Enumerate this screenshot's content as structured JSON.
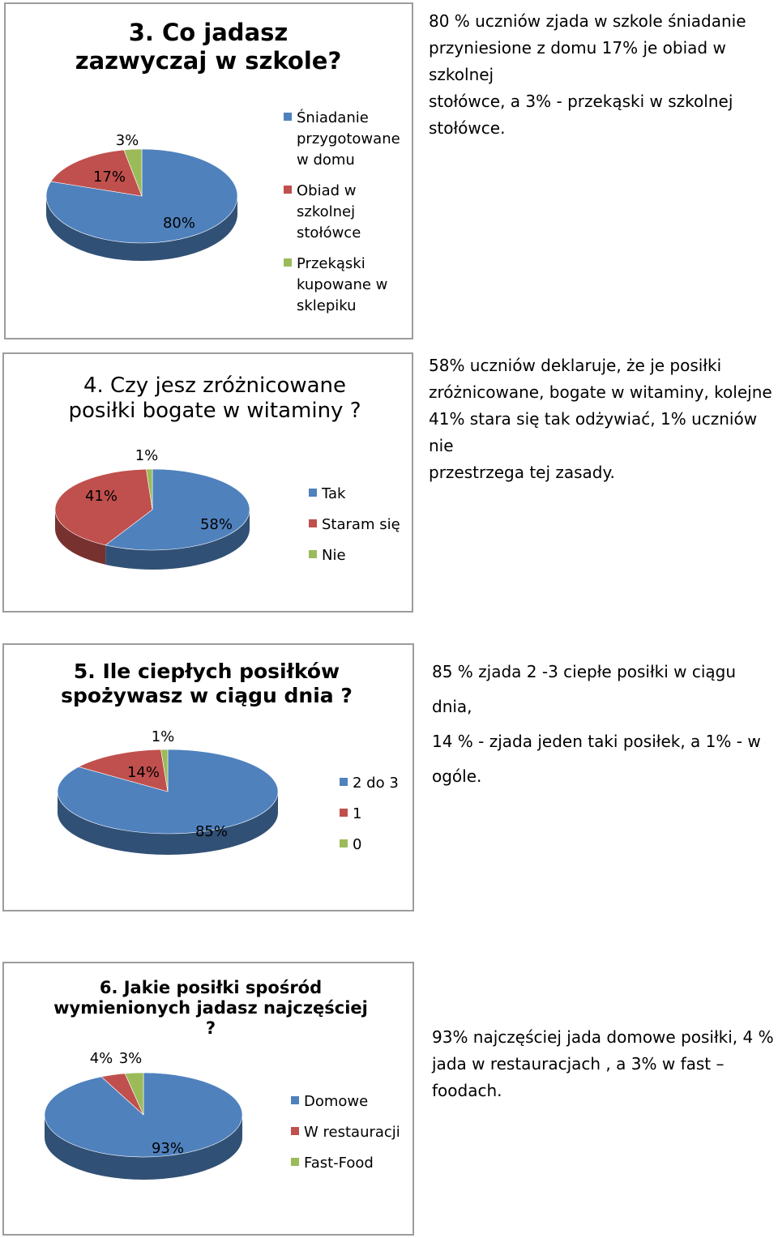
{
  "chart_data": [
    {
      "type": "pie",
      "title": "3. Co jadasz zazwyczaj w szkole?",
      "categories": [
        "Śniadanie przygotowane w domu",
        "Obiad w szkolnej stołówce",
        "Przekąski kupowane w sklepiku"
      ],
      "values": [
        80,
        17,
        3
      ],
      "labels": [
        "80%",
        "17%",
        "3%"
      ],
      "colors": [
        "#4f81bd",
        "#c0504d",
        "#9bbb59"
      ],
      "legend": "right"
    },
    {
      "type": "pie",
      "title": "4. Czy jesz zróżnicowane posiłki bogate w witaminy ?",
      "categories": [
        "Tak",
        "Staram się",
        "Nie"
      ],
      "values": [
        58,
        41,
        1
      ],
      "labels": [
        "58%",
        "41%",
        "1%"
      ],
      "colors": [
        "#4f81bd",
        "#c0504d",
        "#9bbb59"
      ],
      "legend": "right"
    },
    {
      "type": "pie",
      "title": "5. Ile ciepłych posiłków spożywasz w ciągu dnia ?",
      "categories": [
        "2 do 3",
        "1",
        "0"
      ],
      "values": [
        85,
        14,
        1
      ],
      "labels": [
        "85%",
        "14%",
        "1%"
      ],
      "colors": [
        "#4f81bd",
        "#c0504d",
        "#9bbb59"
      ],
      "legend": "right"
    },
    {
      "type": "pie",
      "title": "6. Jakie posiłki spośród wymienionych jadasz najczęściej ?",
      "categories": [
        "Domowe",
        "W restauracji",
        "Fast-Food"
      ],
      "values": [
        93,
        4,
        3
      ],
      "labels": [
        "93%",
        "4%",
        "3%"
      ],
      "colors": [
        "#4f81bd",
        "#c0504d",
        "#9bbb59"
      ],
      "legend": "right"
    }
  ],
  "descriptions": {
    "q3": [
      "80 % uczniów zjada w szkole śniadanie",
      "przyniesione z domu 17% je obiad w szkolnej",
      "stołówce, a 3% - przekąski w szkolnej",
      "stołówce."
    ],
    "q4": [
      "58% uczniów deklaruje, że je posiłki",
      "zróżnicowane, bogate w witaminy, kolejne",
      "41% stara się tak odżywiać, 1% uczniów nie",
      "przestrzega tej zasady."
    ],
    "q5": [
      "85 % zjada 2 -3 ciepłe posiłki w ciągu dnia,",
      "14 % - zjada jeden taki posiłek, a 1% - w",
      "ogóle."
    ],
    "q6": [
      "93% najczęściej jada domowe posiłki, 4 %",
      "jada w restauracjach , a 3% w fast – foodach."
    ]
  }
}
